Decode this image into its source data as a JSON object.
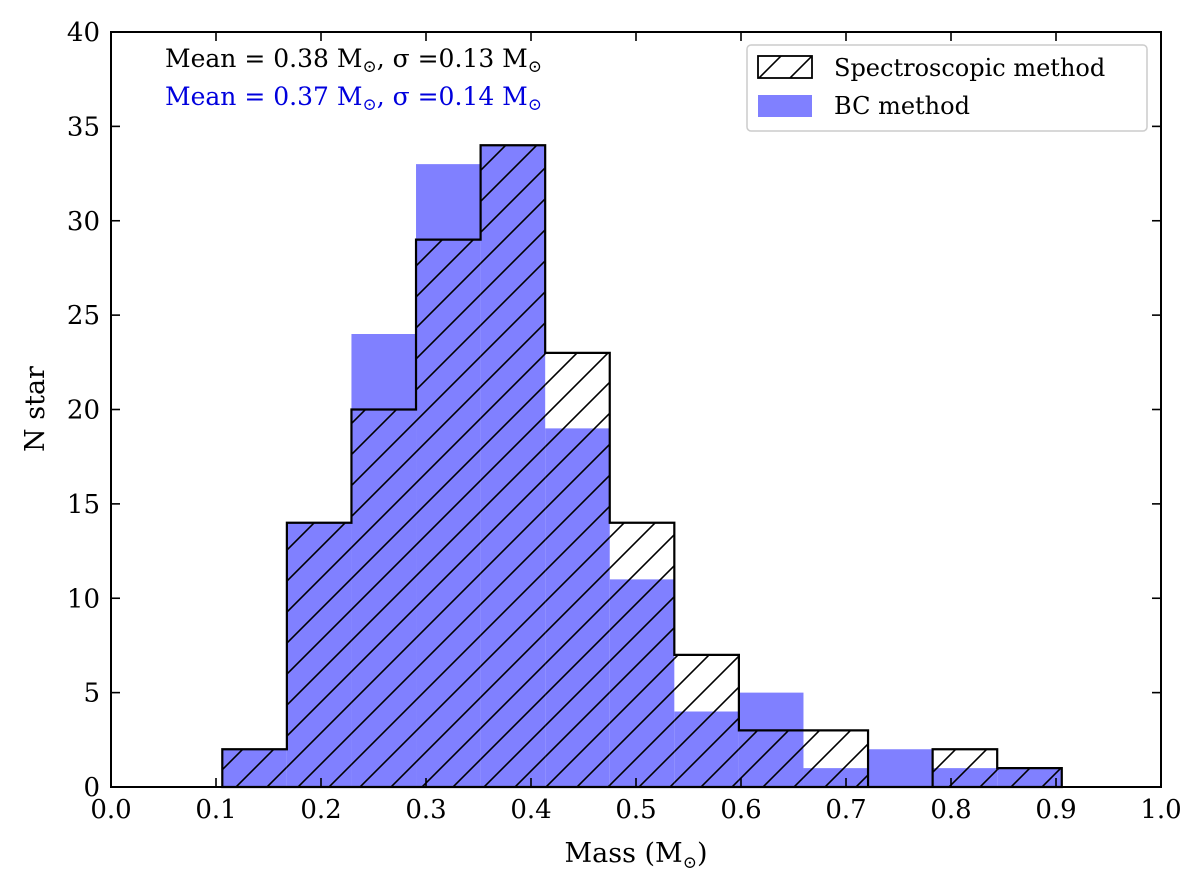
{
  "chart_data": {
    "type": "bar",
    "subtype": "histogram",
    "bin_edges": [
      0.106,
      0.1675,
      0.229,
      0.2905,
      0.352,
      0.4135,
      0.475,
      0.5365,
      0.598,
      0.6595,
      0.721,
      0.7825,
      0.844,
      0.9055
    ],
    "series": [
      {
        "name": "Spectroscopic method",
        "style": "hatched-outline",
        "color": "#000000",
        "values": [
          2,
          14,
          20,
          29,
          34,
          23,
          14,
          7,
          3,
          3,
          0,
          2,
          1
        ]
      },
      {
        "name": "BC method",
        "style": "filled",
        "color": "#8080ff",
        "values": [
          2,
          14,
          24,
          33,
          34,
          19,
          11,
          4,
          5,
          1,
          2,
          1,
          1
        ]
      }
    ],
    "xlabel": "Mass (M",
    "xlabel_sub": "⊙",
    "xlabel_end": ")",
    "ylabel": "N star",
    "xlim": [
      0.0,
      1.0
    ],
    "ylim": [
      0,
      40
    ],
    "xticks": [
      "0.0",
      "0.1",
      "0.2",
      "0.3",
      "0.4",
      "0.5",
      "0.6",
      "0.7",
      "0.8",
      "0.9",
      "1.0"
    ],
    "yticks": [
      "0",
      "5",
      "10",
      "15",
      "20",
      "25",
      "30",
      "35",
      "40"
    ],
    "annotations": [
      {
        "mean_text": "Mean = 0.38 M",
        "sigma_text": ", σ =0.13 M",
        "sun": "⊙",
        "color": "#000000"
      },
      {
        "mean_text": "Mean = 0.37 M",
        "sigma_text": ", σ =0.14 M",
        "sun": "⊙",
        "color": "#0000dd"
      }
    ],
    "legend": {
      "position": "top-right",
      "entries": [
        "Spectroscopic method",
        "BC method"
      ]
    }
  }
}
